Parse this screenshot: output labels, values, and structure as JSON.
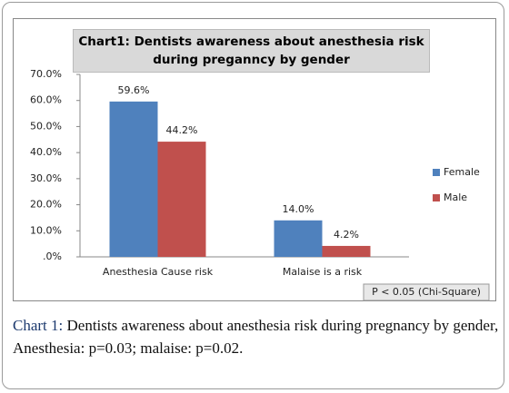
{
  "chart_data": {
    "type": "bar",
    "title": "Chart1: Dentists awareness about anesthesia risk during preganncy by gender",
    "categories": [
      "Anesthesia Cause risk",
      "Malaise is a risk"
    ],
    "series": [
      {
        "name": "Female",
        "color": "#4f81bd",
        "values": [
          59.6,
          14.0
        ],
        "value_labels": [
          "59.6%",
          "14.0%"
        ]
      },
      {
        "name": "Male",
        "color": "#c0504d",
        "values": [
          44.2,
          4.2
        ],
        "value_labels": [
          "44.2%",
          "4.2%"
        ]
      }
    ],
    "ylim": [
      0,
      70
    ],
    "yticks": [
      {
        "value": 0,
        "label": ".0%"
      },
      {
        "value": 10,
        "label": "10.0%"
      },
      {
        "value": 20,
        "label": "20.0%"
      },
      {
        "value": 30,
        "label": "30.0%"
      },
      {
        "value": 40,
        "label": "40.0%"
      },
      {
        "value": 50,
        "label": "50.0%"
      },
      {
        "value": 60,
        "label": "60.0%"
      },
      {
        "value": 70,
        "label": "70.0%"
      }
    ],
    "grid": false,
    "legend": "right",
    "annotation": "P < 0.05 (Chi-Square)"
  },
  "caption": {
    "label": "Chart 1:",
    "text": "Dentists awareness about anesthesia risk during pregnancy by gender, Anesthesia: p=0.03; malaise: p=0.02."
  }
}
